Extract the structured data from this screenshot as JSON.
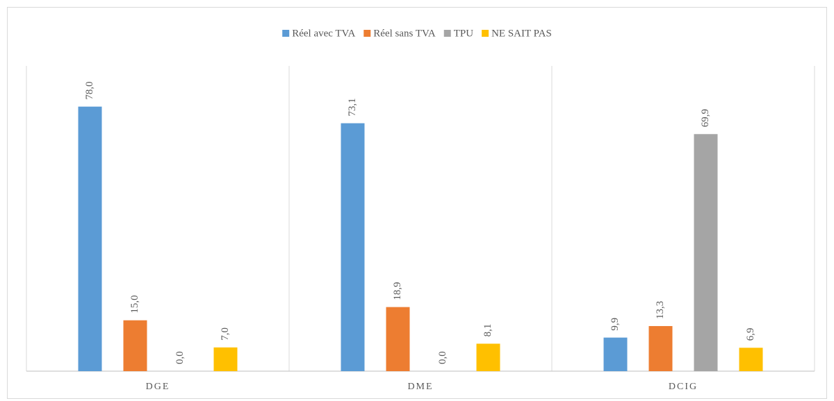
{
  "chart_data": {
    "type": "bar",
    "categories": [
      "DGE",
      "DME",
      "DCIG"
    ],
    "series": [
      {
        "name": "Réel avec TVA",
        "color": "#5b9bd5",
        "values": [
          78.0,
          73.1,
          9.9
        ],
        "value_labels": [
          "78,0",
          "73,1",
          "9,9"
        ]
      },
      {
        "name": "Réel sans TVA",
        "color": "#ed7d31",
        "values": [
          15.0,
          18.9,
          13.3
        ],
        "value_labels": [
          "15,0",
          "18,9",
          "13,3"
        ]
      },
      {
        "name": "TPU",
        "color": "#a5a5a5",
        "values": [
          0.0,
          0.0,
          69.9
        ],
        "value_labels": [
          "0,0",
          "0,0",
          "69,9"
        ]
      },
      {
        "name": "NE SAIT PAS",
        "color": "#ffc000",
        "values": [
          7.0,
          8.1,
          6.9
        ],
        "value_labels": [
          "7,0",
          "8,1",
          "6,9"
        ]
      }
    ],
    "ylim": [
      0,
      90
    ],
    "legend": "top"
  }
}
